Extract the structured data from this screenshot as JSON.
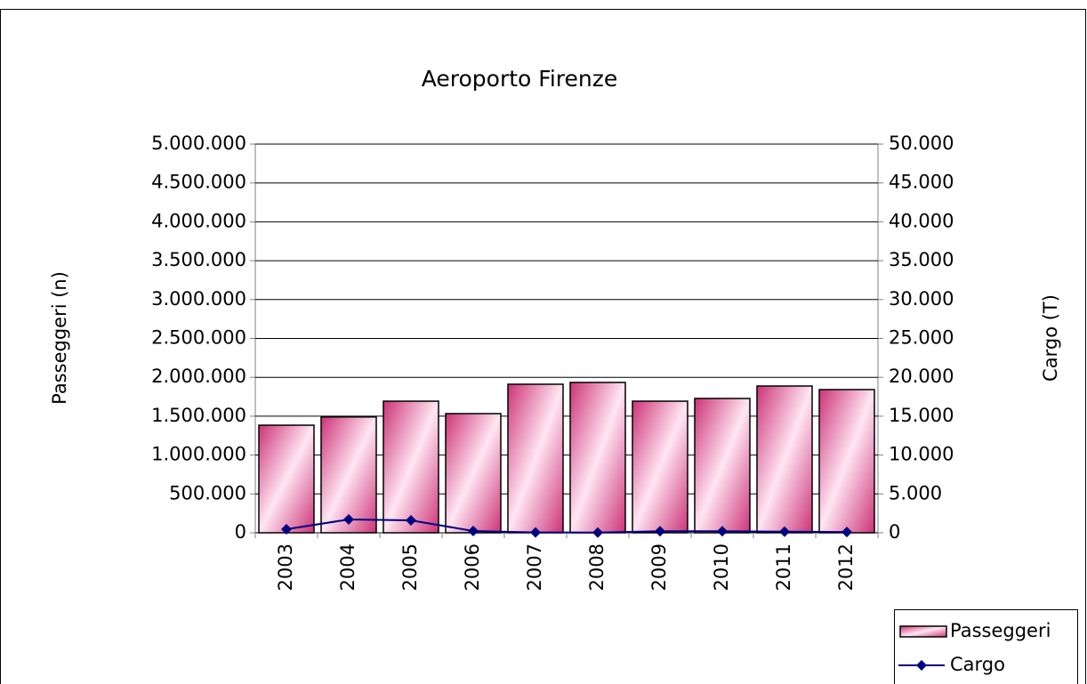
{
  "chart_data": {
    "type": "bar_line",
    "title": "Aeroporto Firenze",
    "y_label": "Passeggeri (n)",
    "y2_label": "Cargo (T)",
    "categories": [
      "2003",
      "2004",
      "2005",
      "2006",
      "2007",
      "2008",
      "2009",
      "2010",
      "2011",
      "2012"
    ],
    "series": [
      {
        "name": "Passeggeri",
        "type": "bar",
        "color": "#cc3377",
        "values": [
          1384000,
          1490000,
          1693000,
          1533000,
          1911000,
          1934000,
          1693000,
          1728000,
          1888000,
          1842000
        ]
      },
      {
        "name": "Cargo",
        "type": "line",
        "axis": "y2",
        "color": "#000080",
        "values": [
          460,
          1716,
          1600,
          230,
          50,
          30,
          200,
          200,
          150,
          100
        ]
      }
    ],
    "ylim": [
      0,
      5000000
    ],
    "yticks": [
      0,
      {
        "value": 500000,
        "label": "500.000"
      },
      {
        "value": 1000000,
        "label": "1.000.000"
      },
      {
        "value": 1500000,
        "label": "1.500.000"
      },
      {
        "value": 2000000,
        "label": "2.000.000"
      },
      {
        "value": 2500000,
        "label": "2.500.000"
      },
      {
        "value": 3000000,
        "label": "3.000.000"
      },
      {
        "value": 3500000,
        "label": "3.500.000"
      },
      {
        "value": 4000000,
        "label": "4.000.000"
      },
      {
        "value": 4500000,
        "label": "4.500.000"
      },
      {
        "value": 5000000,
        "label": "5.000.000"
      }
    ],
    "y2lim": [
      0,
      50000
    ],
    "y2ticks": [
      0,
      {
        "value": 5000,
        "label": "5.000"
      },
      {
        "value": 10000,
        "label": "10.000"
      },
      {
        "value": 15000,
        "label": "15.000"
      },
      {
        "value": 20000,
        "label": "20.000"
      },
      {
        "value": 25000,
        "label": "25.000"
      },
      {
        "value": 30000,
        "label": "30.000"
      },
      {
        "value": 35000,
        "label": "35.000"
      },
      {
        "value": 40000,
        "label": "40.000"
      },
      {
        "value": 45000,
        "label": "45.000"
      },
      {
        "value": 50000,
        "label": "50.000"
      }
    ],
    "grid": true,
    "legend": "bottom-right"
  }
}
